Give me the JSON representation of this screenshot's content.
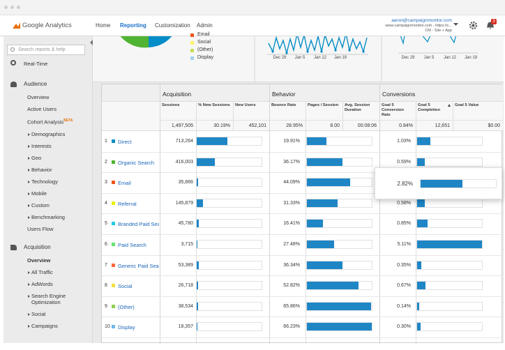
{
  "header": {
    "logo": "Google Analytics",
    "nav": [
      "Home",
      "Reporting",
      "Customization",
      "Admin"
    ],
    "account": {
      "email": "aaron@campaignmonitor.com",
      "site": "www.campaignmonitor.com - https://c...",
      "property": "CM - Site + App"
    },
    "notification_count": "3"
  },
  "sidebar": {
    "search_placeholder": "Search reports & help",
    "realtime": "Real-Time",
    "sections": [
      {
        "title": "Audience",
        "items": [
          {
            "label": "Overview"
          },
          {
            "label": "Active Users"
          },
          {
            "label": "Cohort Analysis",
            "badge": "BETA"
          },
          {
            "label": "Demographics"
          },
          {
            "label": "Interests"
          },
          {
            "label": "Geo"
          },
          {
            "label": "Behavior"
          },
          {
            "label": "Technology"
          },
          {
            "label": "Mobile"
          },
          {
            "label": "Custom"
          },
          {
            "label": "Benchmarking"
          },
          {
            "label": "Users Flow"
          }
        ]
      },
      {
        "title": "Acquisition",
        "items": [
          {
            "label": "Overview"
          },
          {
            "label": "All Traffic"
          },
          {
            "label": "AdWords"
          },
          {
            "label": "Search Engine Optimization"
          },
          {
            "label": "Social"
          },
          {
            "label": "Campaigns"
          }
        ]
      }
    ]
  },
  "overview_charts": {
    "legend": [
      {
        "name": "Email",
        "color": "#ed561b"
      },
      {
        "name": "Social",
        "color": "#fff263"
      },
      {
        "name": "(Other)",
        "color": "#c8e05a"
      },
      {
        "name": "Display",
        "color": "#9fd3f0"
      }
    ],
    "chart1_x": [
      "Dec 29",
      "Jan 5",
      "Jan 12",
      "Jan 19"
    ],
    "chart2_x": [
      "Dec 29",
      "Jan 5",
      "Jan 12",
      "Jan 19"
    ]
  },
  "table": {
    "groups": [
      "Acquisition",
      "Behavior",
      "Conversions"
    ],
    "columns": [
      "Sessions",
      "% New Sessions",
      "New Users",
      "Bounce Rate",
      "Pages / Session",
      "Avg. Session Duration",
      "Goal 5 Conversion Rate",
      "Goal 5 Completion",
      "Goal 5 Value"
    ],
    "totals": [
      "1,497,505",
      "30.19%",
      "452,101",
      "28.95%",
      "8.00",
      "00:08:06",
      "0.84%",
      "12,651",
      "$0.00"
    ],
    "rows": [
      {
        "rank": "1",
        "channel": "Direct",
        "color": "#058dc7",
        "sessions": "713,264",
        "bounce_rate": "19.91%",
        "conversion_rate": "1.03%"
      },
      {
        "rank": "2",
        "channel": "Organic Search",
        "color": "#50b432",
        "sessions": "416,003",
        "bounce_rate": "36.17%",
        "conversion_rate": "0.59%"
      },
      {
        "rank": "3",
        "channel": "Email",
        "color": "#ed561b",
        "sessions": "35,866",
        "bounce_rate": "44.09%",
        "conversion_rate": "2.82%"
      },
      {
        "rank": "4",
        "channel": "Referral",
        "color": "#edef00",
        "sessions": "145,879",
        "bounce_rate": "31.33%",
        "conversion_rate": "0.58%"
      },
      {
        "rank": "5",
        "channel": "Branded Paid Search",
        "color": "#24cbe5",
        "sessions": "45,780",
        "bounce_rate": "16.41%",
        "conversion_rate": "0.85%"
      },
      {
        "rank": "6",
        "channel": "Paid Search",
        "color": "#64e572",
        "sessions": "3,715",
        "bounce_rate": "27.48%",
        "conversion_rate": "5.11%"
      },
      {
        "rank": "7",
        "channel": "Generic Paid Search",
        "color": "#ff6a3c",
        "sessions": "53,389",
        "bounce_rate": "36.34%",
        "conversion_rate": "0.35%"
      },
      {
        "rank": "8",
        "channel": "Social",
        "color": "#f5dd3a",
        "sessions": "26,718",
        "bounce_rate": "52.82%",
        "conversion_rate": "0.67%"
      },
      {
        "rank": "9",
        "channel": "(Other)",
        "color": "#8fd14f",
        "sessions": "38,534",
        "bounce_rate": "65.86%",
        "conversion_rate": "0.14%"
      },
      {
        "rank": "10",
        "channel": "Display",
        "color": "#6fb7e8",
        "sessions": "18,357",
        "bounce_rate": "66.23%",
        "conversion_rate": "0.30%"
      }
    ]
  }
}
